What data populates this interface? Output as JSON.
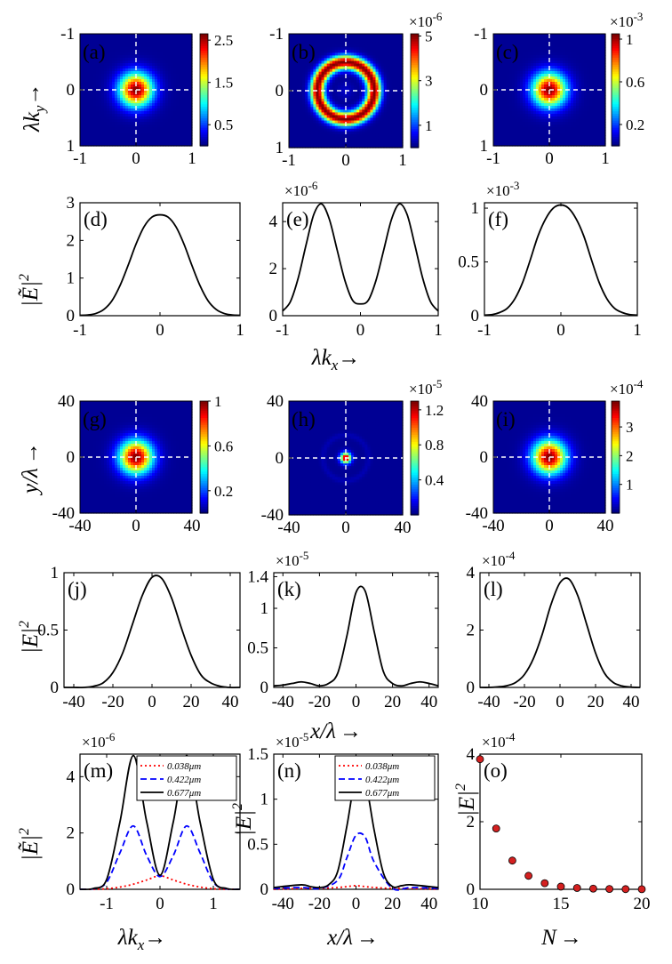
{
  "colorbars": {
    "a": {
      "ticks": [
        "2.5",
        "1.5",
        "0.5"
      ],
      "max": 2.65
    },
    "b": {
      "ticks": [
        "5",
        "3",
        "1"
      ],
      "exp": "×10",
      "sup": "-6",
      "max": 5.1
    },
    "c": {
      "ticks": [
        "1",
        "0.6",
        "0.2"
      ],
      "exp": "×10",
      "sup": "-3",
      "max": 1.05
    },
    "g": {
      "ticks": [
        "1",
        "0.6",
        "0.2"
      ],
      "max": 1.0
    },
    "h": {
      "ticks": [
        "1.2",
        "0.8",
        "0.4"
      ],
      "exp": "×10",
      "sup": "-5",
      "max": 1.3
    },
    "i": {
      "ticks": [
        "3",
        "2",
        "1"
      ],
      "exp": "×10",
      "sup": "-4",
      "max": 3.9
    }
  },
  "axis_labels": {
    "lky": "λk",
    "lky_sub": "y",
    "arrow": "→",
    "lkx": "λk",
    "lkx_sub": "x",
    "ylam": "y/λ",
    "xlam": "x/λ",
    "N": "N",
    "Et_pow": "2",
    "E_pow": "2",
    "Et_row1": "|Ẽ|",
    "E_row2": "|E|",
    "Et_m": "|Ẽ|",
    "E_n": "|E|",
    "E_o": "|E|"
  },
  "chart_data": [
    {
      "id": "a",
      "type": "heatmap",
      "label": "(a)",
      "pattern": "gaussian",
      "xlim": [
        -1,
        1
      ],
      "ylim": [
        1,
        -1
      ],
      "xticks": [
        "-1",
        "0",
        "1"
      ],
      "yticks": [
        "-1",
        "0",
        "1"
      ],
      "clim": [
        0,
        2.65
      ]
    },
    {
      "id": "b",
      "type": "heatmap",
      "label": "(b)",
      "pattern": "ring",
      "xlim": [
        -1,
        1
      ],
      "ylim": [
        1,
        -1
      ],
      "xticks": [
        "-1",
        "0",
        "1"
      ],
      "yticks": [
        "-1",
        "0",
        "1"
      ],
      "clim": [
        0,
        5.1e-06
      ]
    },
    {
      "id": "c",
      "type": "heatmap",
      "label": "(c)",
      "pattern": "gaussian",
      "xlim": [
        -1,
        1
      ],
      "ylim": [
        1,
        -1
      ],
      "xticks": [
        "-1",
        "0",
        "1"
      ],
      "yticks": [
        "-1",
        "0",
        "1"
      ],
      "clim": [
        0,
        0.00105
      ]
    },
    {
      "id": "d",
      "type": "line",
      "label": "(d)",
      "xlim": [
        -1,
        1
      ],
      "ylim": [
        0,
        3
      ],
      "xticks": [
        "-1",
        "0",
        "1"
      ],
      "yticks": [
        "0",
        "1",
        "2",
        "3"
      ],
      "series": [
        {
          "name": "",
          "x": [
            -1,
            -0.9,
            -0.8,
            -0.7,
            -0.6,
            -0.5,
            -0.4,
            -0.3,
            -0.2,
            -0.1,
            0,
            0.1,
            0.2,
            0.3,
            0.4,
            0.5,
            0.6,
            0.7,
            0.8,
            0.9,
            1
          ],
          "y": [
            0.01,
            0.02,
            0.06,
            0.17,
            0.4,
            0.8,
            1.33,
            1.9,
            2.36,
            2.62,
            2.68,
            2.62,
            2.36,
            1.9,
            1.33,
            0.8,
            0.4,
            0.17,
            0.06,
            0.02,
            0.01
          ]
        }
      ]
    },
    {
      "id": "e",
      "type": "line",
      "label": "(e)",
      "exp": "×10",
      "sup": "-6",
      "xlim": [
        -1,
        1
      ],
      "ylim": [
        0,
        4.8
      ],
      "xticks": [
        "-1",
        "0",
        "1"
      ],
      "yticks": [
        "0",
        "2",
        "4"
      ],
      "series": [
        {
          "name": "",
          "x": [
            -1,
            -0.9,
            -0.8,
            -0.7,
            -0.6,
            -0.5,
            -0.4,
            -0.3,
            -0.2,
            -0.1,
            0,
            0.1,
            0.2,
            0.3,
            0.4,
            0.5,
            0.6,
            0.7,
            0.8,
            0.9,
            1
          ],
          "y": [
            0.2,
            0.6,
            1.6,
            3.0,
            4.3,
            4.75,
            4.1,
            2.8,
            1.5,
            0.65,
            0.5,
            0.65,
            1.5,
            2.8,
            4.1,
            4.75,
            4.3,
            3.0,
            1.6,
            0.6,
            0.2
          ]
        }
      ]
    },
    {
      "id": "f",
      "type": "line",
      "label": "(f)",
      "exp": "×10",
      "sup": "-3",
      "xlim": [
        -1,
        1
      ],
      "ylim": [
        0,
        1.05
      ],
      "xticks": [
        "-1",
        "0",
        "1"
      ],
      "yticks": [
        "0",
        "0.5",
        "1"
      ],
      "series": [
        {
          "name": "",
          "x": [
            -1,
            -0.9,
            -0.8,
            -0.7,
            -0.6,
            -0.5,
            -0.4,
            -0.3,
            -0.2,
            -0.1,
            0,
            0.1,
            0.2,
            0.3,
            0.4,
            0.5,
            0.6,
            0.7,
            0.8,
            0.9,
            1
          ],
          "y": [
            0.005,
            0.01,
            0.03,
            0.07,
            0.16,
            0.31,
            0.52,
            0.74,
            0.9,
            1.0,
            1.03,
            1.0,
            0.9,
            0.74,
            0.52,
            0.31,
            0.16,
            0.07,
            0.03,
            0.01,
            0.005
          ]
        }
      ]
    },
    {
      "id": "g",
      "type": "heatmap",
      "label": "(g)",
      "pattern": "gaussian",
      "xlim": [
        -40,
        40
      ],
      "ylim": [
        40,
        -40
      ],
      "xticks": [
        "-40",
        "0",
        "40"
      ],
      "yticks": [
        "40",
        "0",
        "-40"
      ],
      "clim": [
        0,
        1.0
      ]
    },
    {
      "id": "h",
      "type": "heatmap",
      "label": "(h)",
      "pattern": "narrow",
      "xlim": [
        -40,
        40
      ],
      "ylim": [
        40,
        -40
      ],
      "xticks": [
        "-40",
        "0",
        "40"
      ],
      "yticks": [
        "40",
        "0",
        "-40"
      ],
      "clim": [
        0,
        1.3e-05
      ]
    },
    {
      "id": "i",
      "type": "heatmap",
      "label": "(i)",
      "pattern": "gaussian",
      "xlim": [
        -40,
        40
      ],
      "ylim": [
        40,
        -40
      ],
      "xticks": [
        "-40",
        "0",
        "40"
      ],
      "yticks": [
        "40",
        "0",
        "-40"
      ],
      "clim": [
        0,
        0.00039
      ]
    },
    {
      "id": "j",
      "type": "line",
      "label": "(j)",
      "xlim": [
        -45,
        45
      ],
      "ylim": [
        0,
        1
      ],
      "xticks": [
        "-40",
        "-20",
        "0",
        "20",
        "40"
      ],
      "yticks": [
        "0",
        "0.5",
        "1"
      ],
      "series": [
        {
          "name": "",
          "x": [
            -45,
            -40,
            -35,
            -30,
            -25,
            -20,
            -15,
            -10,
            -5,
            0,
            5,
            10,
            15,
            20,
            25,
            30,
            35,
            40,
            45
          ],
          "y": [
            0.0,
            0.0,
            0.0,
            0.01,
            0.04,
            0.13,
            0.3,
            0.55,
            0.8,
            0.96,
            0.95,
            0.78,
            0.52,
            0.28,
            0.11,
            0.04,
            0.01,
            0.0,
            0.0
          ]
        }
      ]
    },
    {
      "id": "k",
      "type": "line",
      "label": "(k)",
      "exp": "×10",
      "sup": "-5",
      "xlim": [
        -45,
        45
      ],
      "ylim": [
        0,
        1.45
      ],
      "xticks": [
        "-40",
        "-20",
        "0",
        "20",
        "40"
      ],
      "yticks": [
        "0",
        "0.5",
        "1",
        "1.4"
      ],
      "series": [
        {
          "name": "",
          "x": [
            -45,
            -40,
            -35,
            -30,
            -25,
            -20,
            -15,
            -10,
            -5,
            0,
            5,
            10,
            15,
            20,
            25,
            30,
            35,
            40,
            45
          ],
          "y": [
            0.02,
            0.03,
            0.05,
            0.07,
            0.05,
            0.02,
            0.05,
            0.18,
            0.65,
            1.2,
            1.22,
            0.7,
            0.2,
            0.05,
            0.02,
            0.05,
            0.07,
            0.05,
            0.02
          ]
        }
      ]
    },
    {
      "id": "l",
      "type": "line",
      "label": "(l)",
      "exp": "×10",
      "sup": "-4",
      "xlim": [
        -45,
        45
      ],
      "ylim": [
        0,
        4
      ],
      "xticks": [
        "-40",
        "-20",
        "0",
        "20",
        "40"
      ],
      "yticks": [
        "0",
        "2",
        "4"
      ],
      "series": [
        {
          "name": "",
          "x": [
            -45,
            -40,
            -35,
            -30,
            -25,
            -20,
            -15,
            -10,
            -5,
            0,
            5,
            10,
            15,
            20,
            25,
            30,
            35,
            40,
            45
          ],
          "y": [
            0.0,
            0.0,
            0.02,
            0.06,
            0.17,
            0.45,
            1.0,
            1.85,
            2.9,
            3.65,
            3.78,
            3.2,
            2.2,
            1.2,
            0.5,
            0.17,
            0.05,
            0.01,
            0.0
          ]
        }
      ]
    },
    {
      "id": "m",
      "type": "line",
      "label": "(m)",
      "exp": "×10",
      "sup": "-6",
      "xlim": [
        -1.5,
        1.5
      ],
      "ylim": [
        0,
        4.8
      ],
      "xticks": [
        "-1",
        "0",
        "1"
      ],
      "yticks": [
        "0",
        "2",
        "4"
      ],
      "legend_position": "top-right",
      "series": [
        {
          "name": "0.038μm",
          "style": "dotted",
          "color": "#ff0000",
          "x": [
            -1.5,
            -1.25,
            -1,
            -0.75,
            -0.5,
            -0.25,
            0,
            0.25,
            0.5,
            0.75,
            1,
            1.25,
            1.5
          ],
          "y": [
            0.0,
            0.0,
            0.02,
            0.08,
            0.18,
            0.33,
            0.48,
            0.33,
            0.18,
            0.08,
            0.02,
            0.0,
            0.0
          ]
        },
        {
          "name": "0.422μm",
          "style": "dashed",
          "color": "#0000ff",
          "x": [
            -1.5,
            -1.25,
            -1,
            -0.75,
            -0.5,
            -0.25,
            0,
            0.25,
            0.5,
            0.75,
            1,
            1.25,
            1.5
          ],
          "y": [
            0.0,
            0.02,
            0.25,
            1.3,
            2.25,
            1.2,
            0.45,
            1.2,
            2.25,
            1.3,
            0.25,
            0.02,
            0.0
          ]
        },
        {
          "name": "0.677μm",
          "style": "solid",
          "color": "#000000",
          "x": [
            -1.5,
            -1.25,
            -1,
            -0.75,
            -0.5,
            -0.25,
            0,
            0.25,
            0.5,
            0.75,
            1,
            1.25,
            1.5
          ],
          "y": [
            0.0,
            0.03,
            0.35,
            2.4,
            4.75,
            2.4,
            0.5,
            2.4,
            4.75,
            2.4,
            0.35,
            0.03,
            0.0
          ]
        }
      ]
    },
    {
      "id": "n",
      "type": "line",
      "label": "(n)",
      "exp": "×10",
      "sup": "-5",
      "xlim": [
        -45,
        45
      ],
      "ylim": [
        0,
        1.5
      ],
      "xticks": [
        "-40",
        "-20",
        "0",
        "20",
        "40"
      ],
      "yticks": [
        "0",
        "0.5",
        "1",
        "1.5"
      ],
      "legend_position": "top-right",
      "series": [
        {
          "name": "0.038μm",
          "style": "dotted",
          "color": "#ff0000",
          "x": [
            -45,
            -30,
            -20,
            -10,
            -5,
            0,
            5,
            10,
            20,
            30,
            45
          ],
          "y": [
            0.0,
            0.01,
            0.01,
            0.02,
            0.03,
            0.04,
            0.03,
            0.02,
            0.01,
            0.01,
            0.0
          ]
        },
        {
          "name": "0.422μm",
          "style": "dashed",
          "color": "#0000ff",
          "x": [
            -45,
            -30,
            -20,
            -10,
            -5,
            0,
            5,
            10,
            20,
            30,
            45
          ],
          "y": [
            0.01,
            0.02,
            0.01,
            0.1,
            0.35,
            0.6,
            0.58,
            0.3,
            0.01,
            0.02,
            0.01
          ]
        },
        {
          "name": "0.677μm",
          "style": "solid",
          "color": "#000000",
          "x": [
            -45,
            -30,
            -25,
            -20,
            -15,
            -10,
            -5,
            0,
            5,
            10,
            15,
            20,
            25,
            30,
            45
          ],
          "y": [
            0.02,
            0.05,
            0.03,
            0.02,
            0.05,
            0.2,
            0.7,
            1.25,
            1.2,
            0.65,
            0.18,
            0.03,
            0.04,
            0.05,
            0.02
          ]
        }
      ]
    },
    {
      "id": "o",
      "type": "scatter",
      "label": "(o)",
      "exp": "×10",
      "sup": "-4",
      "xlim": [
        10,
        20
      ],
      "ylim": [
        0,
        4
      ],
      "xticks": [
        "10",
        "15",
        "20"
      ],
      "yticks": [
        "0",
        "2",
        "4"
      ],
      "series": [
        {
          "name": "",
          "x": [
            10,
            11,
            12,
            13,
            14,
            15,
            16,
            17,
            18,
            19,
            20
          ],
          "y": [
            3.85,
            1.8,
            0.85,
            0.4,
            0.18,
            0.08,
            0.04,
            0.02,
            0.01,
            0.005,
            0.003
          ]
        }
      ]
    }
  ]
}
